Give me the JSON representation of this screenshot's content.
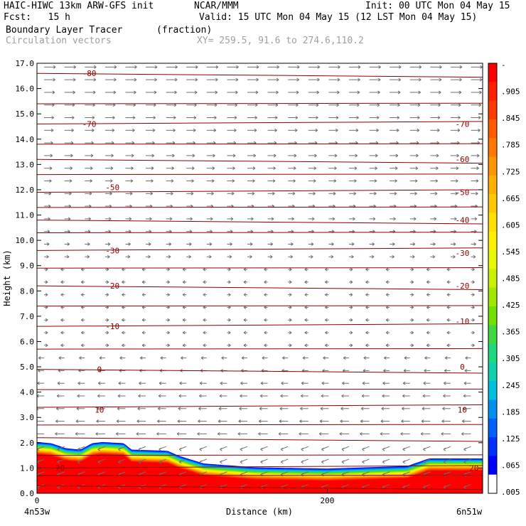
{
  "header": {
    "model": "HAIC-HIWC 13km ARW-GFS init",
    "center": "NCAR/MMM",
    "init": "Init: 00 UTC Mon 04 May 15",
    "fcst": "Fcst:   15 h",
    "valid": "Valid: 15 UTC Mon 04 May 15 (12 LST Mon 04 May 15)",
    "field_name": "Boundary Layer Tracer",
    "field_units": "(fraction)",
    "vectors": "Circulation vectors",
    "xy": "XY= 259.5, 91.6 to 274.6,110.2"
  },
  "chart_data": {
    "type": "cross-section",
    "ylabel": "Height (km)",
    "xlabel": "Distance (km)",
    "ylim": [
      0,
      17
    ],
    "y_ticks": [
      "0.0",
      "1.0",
      "2.0",
      "3.0",
      "4.0",
      "5.0",
      "6.0",
      "7.0",
      "8.0",
      "9.0",
      "10.0",
      "11.0",
      "12.0",
      "13.0",
      "14.0",
      "15.0",
      "16.0",
      "17.0"
    ],
    "xlim": [
      0,
      307
    ],
    "x_ticks": [
      "0",
      "200"
    ],
    "x_ticks_values": [
      0,
      200
    ],
    "left_endpoint": "4n53w",
    "right_endpoint": "6n51w",
    "colorbar": {
      "labels": [
        "-",
        ".905",
        ".845",
        ".785",
        ".725",
        ".665",
        ".605",
        ".545",
        ".485",
        ".425",
        ".365",
        ".305",
        ".245",
        ".185",
        ".125",
        ".065",
        ".005"
      ],
      "colors": [
        "#ff0000",
        "#ff2000",
        "#ff3a00",
        "#ff5a00",
        "#ff7800",
        "#ff9600",
        "#ffb000",
        "#ffc800",
        "#ffe000",
        "#fff200",
        "#e8f800",
        "#c8f000",
        "#a0e800",
        "#70e000",
        "#40d840",
        "#20d880",
        "#10d0b0",
        "#00c0e0",
        "#0090f0",
        "#0060ff",
        "#0030ff",
        "#0000ff",
        "#ffffff"
      ]
    },
    "contour_labels": [
      {
        "text": "-80",
        "x": 36,
        "y": 16.6
      },
      {
        "text": "-70",
        "x": 36,
        "y": 14.6
      },
      {
        "text": "-70",
        "x": 293,
        "y": 14.6
      },
      {
        "text": "-60",
        "x": 293,
        "y": 13.2
      },
      {
        "text": "-50",
        "x": 52,
        "y": 12.1
      },
      {
        "text": "-50",
        "x": 293,
        "y": 11.9
      },
      {
        "text": "-40",
        "x": 293,
        "y": 10.8
      },
      {
        "text": "-30",
        "x": 52,
        "y": 9.6
      },
      {
        "text": "-30",
        "x": 293,
        "y": 9.5
      },
      {
        "text": "-20",
        "x": 52,
        "y": 8.2
      },
      {
        "text": "-20",
        "x": 293,
        "y": 8.2
      },
      {
        "text": "-10",
        "x": 52,
        "y": 6.6
      },
      {
        "text": "-10",
        "x": 293,
        "y": 6.8
      },
      {
        "text": "0",
        "x": 43,
        "y": 4.9
      },
      {
        "text": "0",
        "x": 293,
        "y": 5.0
      },
      {
        "text": "10",
        "x": 43,
        "y": 3.3
      },
      {
        "text": "10",
        "x": 293,
        "y": 3.3
      },
      {
        "text": "20",
        "x": 16,
        "y": 1.0
      },
      {
        "text": "20",
        "x": 301,
        "y": 1.0
      }
    ]
  }
}
